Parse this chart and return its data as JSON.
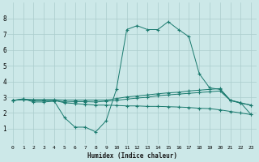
{
  "xlabel": "Humidex (Indice chaleur)",
  "bg_color": "#cce8e8",
  "grid_color": "#aacccc",
  "line_color": "#1a7a6e",
  "xlim": [
    -0.5,
    23.5
  ],
  "ylim": [
    0,
    9
  ],
  "xticks": [
    0,
    1,
    2,
    3,
    4,
    5,
    6,
    7,
    8,
    9,
    10,
    11,
    12,
    13,
    14,
    15,
    16,
    17,
    18,
    19,
    20,
    21,
    22,
    23
  ],
  "yticks": [
    1,
    2,
    3,
    4,
    5,
    6,
    7,
    8
  ],
  "series": {
    "curve1": {
      "x": [
        0,
        1,
        2,
        3,
        4,
        5,
        6,
        7,
        8,
        9,
        10,
        11,
        12,
        13,
        14,
        15,
        16,
        17,
        18,
        19,
        20,
        21,
        22,
        23
      ],
      "y": [
        2.8,
        2.9,
        2.7,
        2.7,
        2.75,
        1.7,
        1.1,
        1.1,
        0.8,
        1.5,
        3.5,
        7.3,
        7.55,
        7.3,
        7.3,
        7.8,
        7.3,
        6.85,
        4.5,
        3.6,
        3.5,
        2.8,
        2.65,
        1.9
      ]
    },
    "curve2": {
      "x": [
        0,
        1,
        2,
        3,
        4,
        5,
        6,
        7,
        8,
        9,
        10,
        11,
        12,
        13,
        14,
        15,
        16,
        17,
        18,
        19,
        20,
        21,
        22,
        23
      ],
      "y": [
        2.8,
        2.85,
        2.8,
        2.8,
        2.8,
        2.7,
        2.72,
        2.72,
        2.7,
        2.75,
        2.8,
        2.88,
        2.95,
        3.0,
        3.1,
        3.15,
        3.2,
        3.25,
        3.3,
        3.35,
        3.4,
        2.8,
        2.62,
        2.5
      ]
    },
    "curve3": {
      "x": [
        0,
        1,
        2,
        3,
        4,
        5,
        6,
        7,
        8,
        9,
        10,
        11,
        12,
        13,
        14,
        15,
        16,
        17,
        18,
        19,
        20,
        21,
        22,
        23
      ],
      "y": [
        2.8,
        2.85,
        2.8,
        2.8,
        2.8,
        2.65,
        2.6,
        2.55,
        2.5,
        2.5,
        2.48,
        2.45,
        2.45,
        2.42,
        2.42,
        2.4,
        2.38,
        2.35,
        2.3,
        2.28,
        2.2,
        2.1,
        2.0,
        1.9
      ]
    },
    "curve4": {
      "x": [
        0,
        1,
        2,
        3,
        4,
        5,
        6,
        7,
        8,
        9,
        10,
        11,
        12,
        13,
        14,
        15,
        16,
        17,
        18,
        19,
        20,
        21,
        22,
        23
      ],
      "y": [
        2.8,
        2.88,
        2.85,
        2.85,
        2.85,
        2.82,
        2.82,
        2.82,
        2.82,
        2.82,
        2.92,
        3.02,
        3.08,
        3.15,
        3.22,
        3.28,
        3.32,
        3.4,
        3.45,
        3.5,
        3.55,
        2.82,
        2.65,
        2.5
      ]
    }
  }
}
